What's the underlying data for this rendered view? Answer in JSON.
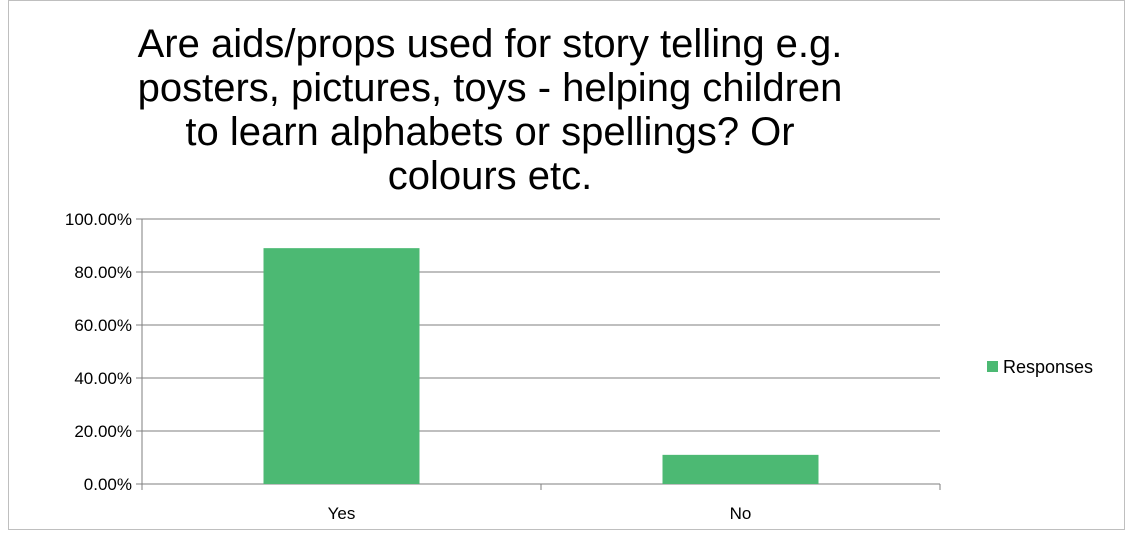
{
  "chart_data": {
    "type": "bar",
    "title": "Are aids/props used for story telling e.g. posters, pictures, toys - helping children to learn alphabets or spellings? Or colours etc.",
    "title_lines": [
      "Are aids/props used for story telling e.g.",
      "posters, pictures, toys - helping children",
      "to learn alphabets or spellings? Or",
      "colours etc."
    ],
    "categories": [
      "Yes",
      "No"
    ],
    "series": [
      {
        "name": "Responses",
        "values": [
          0.89,
          0.11
        ],
        "color": "#4cb973"
      }
    ],
    "ylim": [
      0,
      1
    ],
    "yticks": [
      0,
      0.2,
      0.4,
      0.6,
      0.8,
      1.0
    ],
    "ytick_labels": [
      "0.00%",
      "20.00%",
      "40.00%",
      "60.00%",
      "80.00%",
      "100.00%"
    ],
    "xlabel": "",
    "ylabel": "",
    "grid": true,
    "legend_position": "right"
  }
}
